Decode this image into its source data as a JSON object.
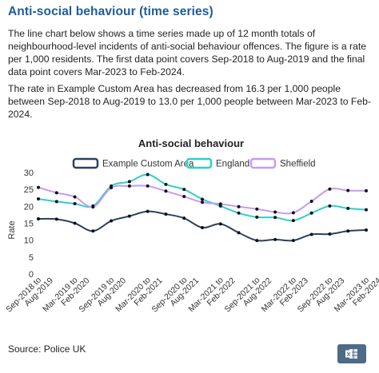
{
  "heading": "Anti-social behaviour (time series)",
  "paragraphs": {
    "p1": "The line chart below shows a time series made up of 12 month totals of neighbourhood-level incidents of anti-social behaviour offences. The figure is a rate per 1,000 residents. The first data point covers Sep-2018 to Aug-2019 and the final data point covers Mar-2023 to Feb-2024.",
    "p2": "The rate in Example Custom Area has decreased from 16.3 per 1,000 people between Sep-2018 to Aug-2019 to 13.0 per 1,000 people between Mar-2023 to Feb-2024."
  },
  "source": "Source: Police UK",
  "export_icon": "excel-export-icon",
  "chart_data": {
    "type": "line",
    "title": "Anti-social behaviour",
    "ylabel": "Rate",
    "xlabel": "",
    "ylim": [
      0,
      30
    ],
    "yticks": [
      0,
      5,
      10,
      15,
      20,
      25,
      30
    ],
    "grid": false,
    "legend_position": "top",
    "x": [
      "Sep-2018 to Aug-2019",
      "Dec-2018 to Nov-2019",
      "Mar-2019 to Feb-2020",
      "Jun-2019 to May-2020",
      "Sep-2019 to Aug-2020",
      "Dec-2019 to Nov-2020",
      "Mar-2020 to Feb-2021",
      "Jun-2020 to May-2021",
      "Sep-2020 to Aug-2021",
      "Dec-2020 to Nov-2021",
      "Mar-2021 to Feb-2022",
      "Jun-2021 to May-2022",
      "Sep-2021 to Aug-2022",
      "Dec-2021 to Nov-2022",
      "Mar-2022 to Feb-2023",
      "Jun-2022 to May-2023",
      "Sep-2022 to Aug-2023",
      "Dec-2022 to Nov-2023",
      "Mar-2023 to Feb-2024"
    ],
    "tick_labels": [
      "Sep-2018 to Aug-2019",
      "Mar-2019 to Feb-2020",
      "Sep-2019 to Aug-2020",
      "Mar-2020 to Feb-2021",
      "Sep-2020 to Aug-2021",
      "Mar-2021 to Feb-2022",
      "Sep-2021 to Aug-2022",
      "Mar-2022 to Feb-2023",
      "Sep-2022 to Aug-2023",
      "Mar-2023 to Feb-2024"
    ],
    "series": [
      {
        "name": "Example Custom Area",
        "color": "#2b4160",
        "values": [
          16.3,
          16.2,
          15.0,
          12.7,
          15.7,
          17.1,
          18.5,
          17.7,
          16.5,
          13.7,
          14.8,
          12.2,
          9.9,
          10.2,
          9.9,
          11.7,
          11.8,
          12.7,
          13.0
        ]
      },
      {
        "name": "England",
        "color": "#2ecfc6",
        "values": [
          22.2,
          21.4,
          20.8,
          20.1,
          26.0,
          27.3,
          29.4,
          26.5,
          25.0,
          22.1,
          20.1,
          18.0,
          16.8,
          16.7,
          15.8,
          18.0,
          20.1,
          19.4,
          19.0
        ]
      },
      {
        "name": "Sheffield",
        "color": "#c69bf2",
        "values": [
          25.6,
          24.0,
          22.8,
          19.8,
          25.5,
          26.0,
          26.0,
          24.5,
          22.9,
          21.2,
          20.7,
          19.9,
          19.2,
          18.3,
          18.1,
          21.5,
          25.1,
          24.7,
          24.6
        ]
      }
    ]
  }
}
